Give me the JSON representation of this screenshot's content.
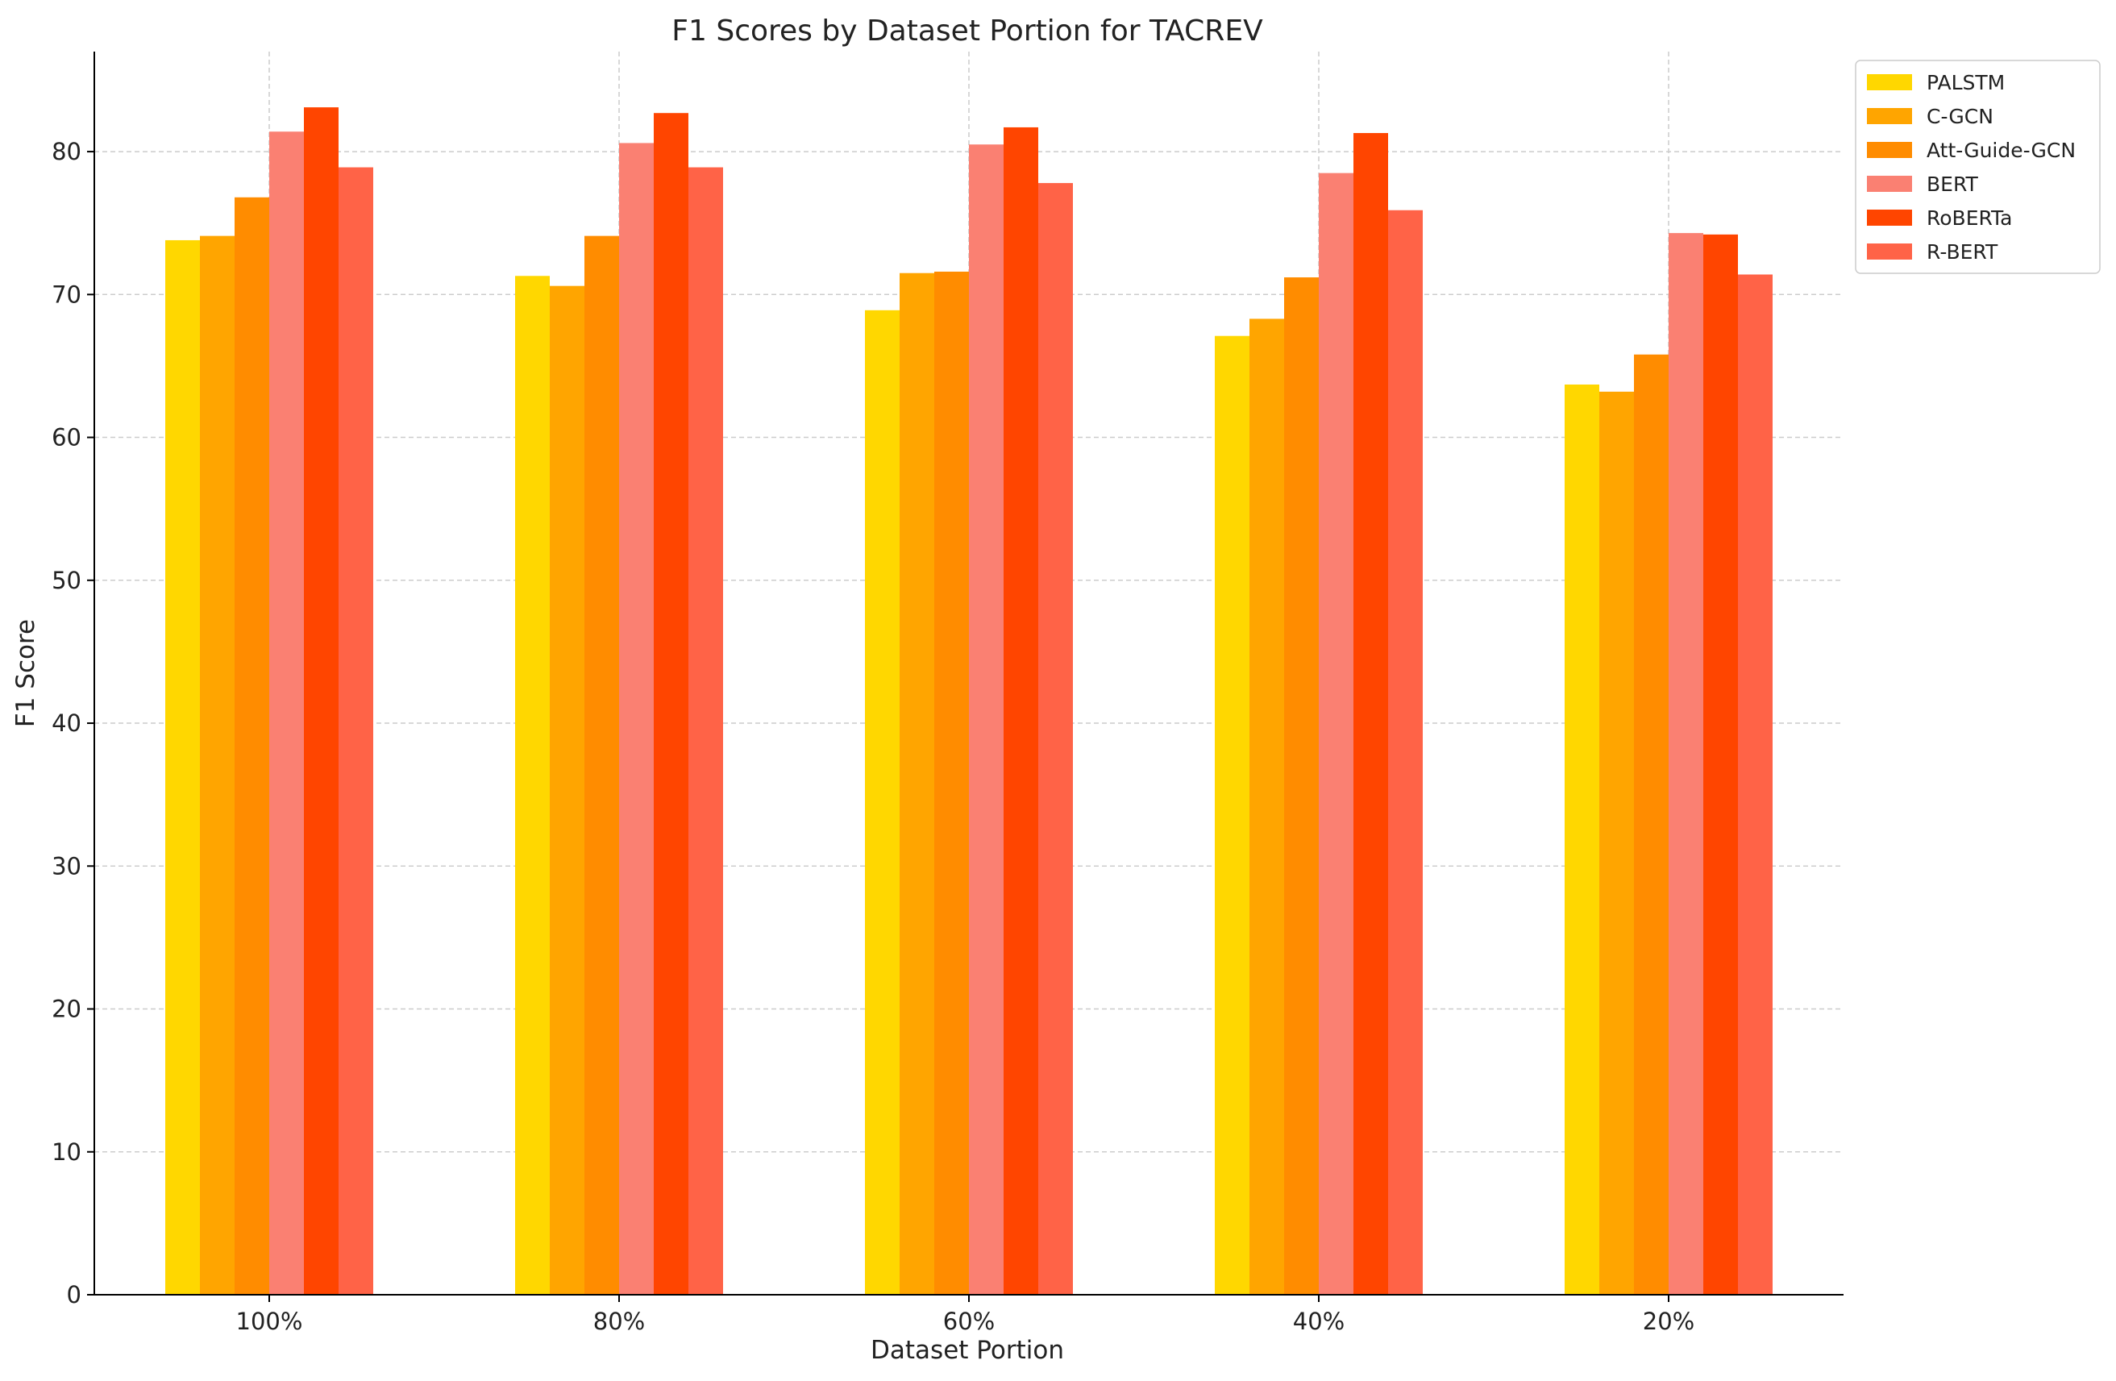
{
  "chart_data": {
    "type": "bar",
    "title": "F1 Scores by Dataset Portion for TACREV",
    "xlabel": "Dataset Portion",
    "ylabel": "F1 Score",
    "categories": [
      "100%",
      "80%",
      "60%",
      "40%",
      "20%"
    ],
    "ylim": [
      0,
      87
    ],
    "yticks": [
      0,
      10,
      20,
      30,
      40,
      50,
      60,
      70,
      80
    ],
    "grid": true,
    "legend_position": "top-right (outside plot)",
    "series": [
      {
        "name": "PALSTM",
        "color": "#FFD700",
        "values": [
          73.8,
          71.3,
          68.9,
          67.1,
          63.7
        ]
      },
      {
        "name": "C-GCN",
        "color": "#FFA500",
        "values": [
          74.1,
          70.6,
          71.5,
          68.3,
          63.2
        ]
      },
      {
        "name": "Att-Guide-GCN",
        "color": "#FF8C00",
        "values": [
          76.8,
          74.1,
          71.6,
          71.2,
          65.8
        ]
      },
      {
        "name": "BERT",
        "color": "#FA8072",
        "values": [
          81.4,
          80.6,
          80.5,
          78.5,
          74.3
        ]
      },
      {
        "name": "RoBERTa",
        "color": "#FF4500",
        "values": [
          83.1,
          82.7,
          81.7,
          81.3,
          74.2
        ]
      },
      {
        "name": "R-BERT",
        "color": "#FF6347",
        "values": [
          78.9,
          78.9,
          77.8,
          75.9,
          71.4
        ]
      }
    ]
  }
}
